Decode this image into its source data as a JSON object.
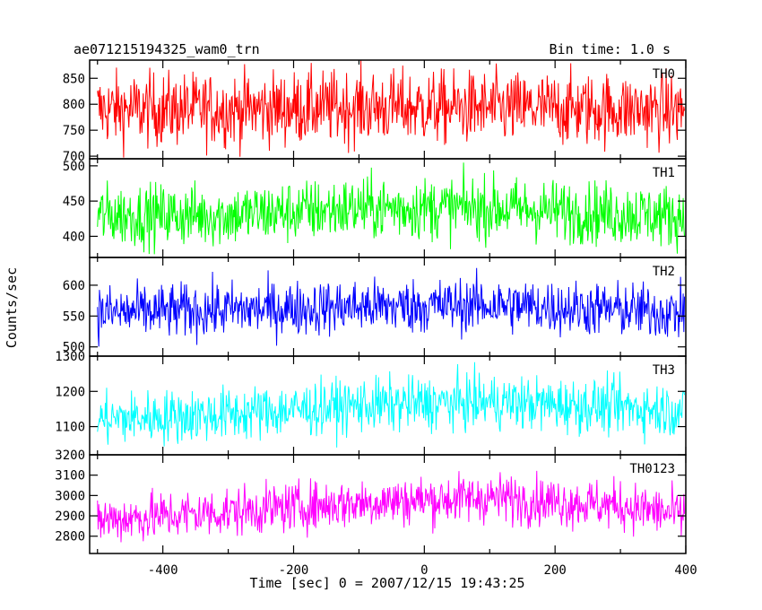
{
  "header": {
    "title": "ae071215194325_wam0_trn",
    "bin_time": "Bin time: 1.0 s"
  },
  "chart_data": {
    "type": "line",
    "title": "ae071215194325_wam0_trn",
    "xlabel": "Time [sec] 0 = 2007/12/15 19:43:25",
    "ylabel": "Counts/sec",
    "xlim": [
      -512,
      400
    ],
    "x_ticks": [
      -400,
      -200,
      0,
      200,
      400
    ],
    "panels": [
      {
        "name": "TH0",
        "color": "#ff0000",
        "ylim": [
          695,
          885
        ],
        "ticks": [
          700,
          750,
          800,
          850
        ],
        "profile": [
          [
            -500,
            790
          ],
          [
            -300,
            790
          ],
          [
            -100,
            795
          ],
          [
            100,
            792
          ],
          [
            300,
            790
          ],
          [
            400,
            788
          ]
        ],
        "noise": 35
      },
      {
        "name": "TH1",
        "color": "#00ff00",
        "ylim": [
          370,
          510
        ],
        "ticks": [
          400,
          450,
          500
        ],
        "profile": [
          [
            -500,
            430
          ],
          [
            -300,
            430
          ],
          [
            -100,
            440
          ],
          [
            100,
            440
          ],
          [
            300,
            432
          ],
          [
            400,
            428
          ]
        ],
        "noise": 22
      },
      {
        "name": "TH2",
        "color": "#0000ff",
        "ylim": [
          485,
          645
        ],
        "ticks": [
          500,
          550,
          600
        ],
        "profile": [
          [
            -500,
            555
          ],
          [
            -300,
            560
          ],
          [
            -100,
            565
          ],
          [
            100,
            568
          ],
          [
            300,
            560
          ],
          [
            400,
            555
          ]
        ],
        "noise": 22
      },
      {
        "name": "TH3",
        "color": "#00ffff",
        "ylim": [
          1020,
          1300
        ],
        "ticks": [
          1100,
          1200,
          1300
        ],
        "profile": [
          [
            -500,
            1120
          ],
          [
            -300,
            1135
          ],
          [
            -100,
            1160
          ],
          [
            100,
            1170
          ],
          [
            300,
            1155
          ],
          [
            400,
            1145
          ]
        ],
        "noise": 38
      },
      {
        "name": "TH0123",
        "color": "#ff00ff",
        "ylim": [
          2715,
          3200
        ],
        "ticks": [
          2800,
          2900,
          3000,
          3100,
          3200
        ],
        "profile": [
          [
            -500,
            2880
          ],
          [
            -300,
            2920
          ],
          [
            -100,
            2965
          ],
          [
            100,
            2990
          ],
          [
            300,
            2950
          ],
          [
            400,
            2900
          ]
        ],
        "noise": 60
      }
    ]
  }
}
